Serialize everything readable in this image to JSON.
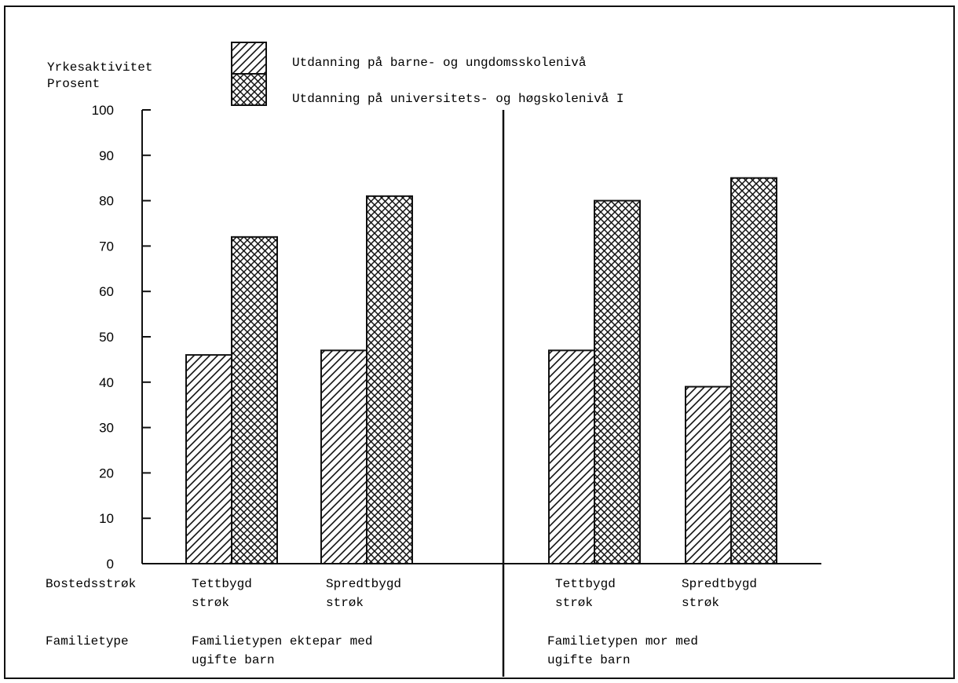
{
  "chart_data": {
    "type": "bar",
    "ylabel_line1": "Yrkesaktivitet",
    "ylabel_line2": "Prosent",
    "ylim": [
      0,
      100
    ],
    "yticks": [
      0,
      10,
      20,
      30,
      40,
      50,
      60,
      70,
      80,
      90,
      100
    ],
    "row_labels": {
      "bostedsstrok": "Bostedsstrøk",
      "familietype": "Familietype"
    },
    "legend": {
      "placement": "top",
      "entries": [
        {
          "label": "Utdanning på barne- og ungdomsskolenivå",
          "pattern": "diagonal"
        },
        {
          "label": "Utdanning på universitets- og høgskolenivå I",
          "pattern": "crosshatch"
        }
      ]
    },
    "groups": [
      {
        "familietype_line1": "Familietypen ektepar med",
        "familietype_line2": "ugifte barn",
        "categories": [
          {
            "label_line1": "Tettbygd",
            "label_line2": "strøk",
            "values": [
              46,
              72
            ]
          },
          {
            "label_line1": "Spredtbygd",
            "label_line2": "strøk",
            "values": [
              47,
              81
            ]
          }
        ]
      },
      {
        "familietype_line1": "Familietypen mor med",
        "familietype_line2": "ugifte barn",
        "categories": [
          {
            "label_line1": "Tettbygd",
            "label_line2": "strøk",
            "values": [
              47,
              80
            ]
          },
          {
            "label_line1": "Spredtbygd",
            "label_line2": "strøk",
            "values": [
              39,
              85
            ]
          }
        ]
      }
    ]
  }
}
